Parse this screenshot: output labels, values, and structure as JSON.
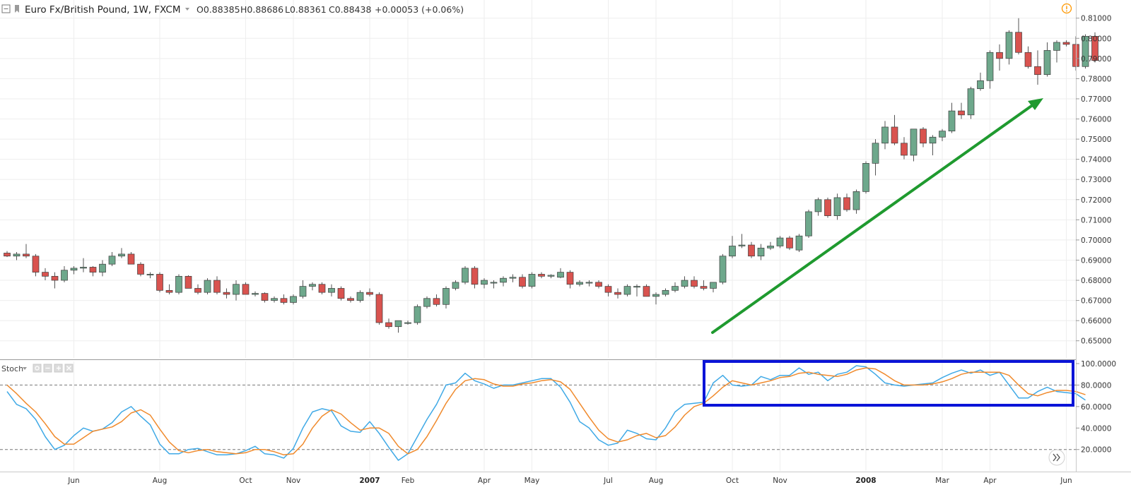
{
  "header": {
    "symbol": "Euro Fx/British Pound, 1W, FXCM",
    "open": "O0.88385",
    "high": "H0.88686",
    "low": "L0.88361",
    "close": "C0.88438",
    "change": "+0.00053 (+0.06%)",
    "colors": {
      "up": "#26a69a",
      "text": "#333333",
      "warning": "#ff9800"
    }
  },
  "indicator": {
    "name": "Stoch"
  },
  "colors": {
    "bull": "#6ea88c",
    "bear": "#d9534f",
    "k_line": "#3fa9e6",
    "d_line": "#f08a2c",
    "arrow": "#1f9a2f",
    "highlight_box": "#0a14d8",
    "grid": "#eeeeee"
  },
  "chart_data": [
    {
      "type": "candlestick",
      "ylim": [
        0.645,
        0.812
      ],
      "yticks": [
        "0.65000",
        "0.66000",
        "0.67000",
        "0.68000",
        "0.69000",
        "0.70000",
        "0.71000",
        "0.72000",
        "0.73000",
        "0.74000",
        "0.75000",
        "0.76000",
        "0.77000",
        "0.78000",
        "0.79000",
        "0.80000",
        "0.81000"
      ],
      "x_labels": [
        {
          "label": "Jun",
          "index": 7
        },
        {
          "label": "Aug",
          "index": 16
        },
        {
          "label": "Oct",
          "index": 25
        },
        {
          "label": "Nov",
          "index": 30
        },
        {
          "label": "2007",
          "index": 38,
          "bold": true
        },
        {
          "label": "Feb",
          "index": 42
        },
        {
          "label": "Apr",
          "index": 50
        },
        {
          "label": "May",
          "index": 55
        },
        {
          "label": "Jul",
          "index": 63
        },
        {
          "label": "Aug",
          "index": 68
        },
        {
          "label": "Oct",
          "index": 76
        },
        {
          "label": "Nov",
          "index": 81
        },
        {
          "label": "2008",
          "index": 90,
          "bold": true
        },
        {
          "label": "Mar",
          "index": 98
        },
        {
          "label": "Apr",
          "index": 103
        },
        {
          "label": "Jun",
          "index": 111
        }
      ],
      "candles": [
        [
          0.6935,
          0.6945,
          0.6915,
          0.692
        ],
        [
          0.692,
          0.694,
          0.69,
          0.693
        ],
        [
          0.693,
          0.698,
          0.691,
          0.692
        ],
        [
          0.692,
          0.693,
          0.682,
          0.684
        ],
        [
          0.684,
          0.686,
          0.68,
          0.682
        ],
        [
          0.682,
          0.684,
          0.676,
          0.68
        ],
        [
          0.68,
          0.687,
          0.679,
          0.685
        ],
        [
          0.685,
          0.687,
          0.683,
          0.686
        ],
        [
          0.686,
          0.691,
          0.684,
          0.6865
        ],
        [
          0.6865,
          0.687,
          0.682,
          0.684
        ],
        [
          0.684,
          0.69,
          0.682,
          0.688
        ],
        [
          0.688,
          0.694,
          0.687,
          0.692
        ],
        [
          0.692,
          0.696,
          0.691,
          0.693
        ],
        [
          0.693,
          0.694,
          0.688,
          0.688
        ],
        [
          0.688,
          0.689,
          0.682,
          0.683
        ],
        [
          0.683,
          0.684,
          0.681,
          0.683
        ],
        [
          0.683,
          0.684,
          0.674,
          0.675
        ],
        [
          0.675,
          0.678,
          0.673,
          0.674
        ],
        [
          0.674,
          0.683,
          0.673,
          0.682
        ],
        [
          0.682,
          0.6825,
          0.676,
          0.676
        ],
        [
          0.676,
          0.678,
          0.673,
          0.674
        ],
        [
          0.674,
          0.681,
          0.673,
          0.68
        ],
        [
          0.68,
          0.682,
          0.673,
          0.674
        ],
        [
          0.674,
          0.676,
          0.671,
          0.673
        ],
        [
          0.673,
          0.68,
          0.67,
          0.678
        ],
        [
          0.678,
          0.679,
          0.673,
          0.673
        ],
        [
          0.673,
          0.6745,
          0.672,
          0.6735
        ],
        [
          0.6735,
          0.674,
          0.669,
          0.67
        ],
        [
          0.67,
          0.672,
          0.669,
          0.671
        ],
        [
          0.671,
          0.673,
          0.668,
          0.669
        ],
        [
          0.669,
          0.673,
          0.668,
          0.672
        ],
        [
          0.672,
          0.68,
          0.671,
          0.677
        ],
        [
          0.677,
          0.679,
          0.675,
          0.678
        ],
        [
          0.678,
          0.679,
          0.673,
          0.674
        ],
        [
          0.674,
          0.678,
          0.672,
          0.676
        ],
        [
          0.676,
          0.677,
          0.67,
          0.671
        ],
        [
          0.671,
          0.672,
          0.669,
          0.67
        ],
        [
          0.67,
          0.675,
          0.669,
          0.674
        ],
        [
          0.674,
          0.676,
          0.672,
          0.673
        ],
        [
          0.673,
          0.674,
          0.658,
          0.659
        ],
        [
          0.659,
          0.661,
          0.656,
          0.657
        ],
        [
          0.657,
          0.66,
          0.654,
          0.66
        ],
        [
          0.659,
          0.66,
          0.658,
          0.659
        ],
        [
          0.659,
          0.668,
          0.658,
          0.667
        ],
        [
          0.667,
          0.672,
          0.666,
          0.671
        ],
        [
          0.671,
          0.673,
          0.667,
          0.668
        ],
        [
          0.668,
          0.677,
          0.666,
          0.676
        ],
        [
          0.676,
          0.68,
          0.675,
          0.679
        ],
        [
          0.679,
          0.687,
          0.678,
          0.686
        ],
        [
          0.686,
          0.687,
          0.676,
          0.678
        ],
        [
          0.678,
          0.681,
          0.676,
          0.68
        ],
        [
          0.679,
          0.68,
          0.676,
          0.679
        ],
        [
          0.679,
          0.682,
          0.677,
          0.681
        ],
        [
          0.681,
          0.683,
          0.679,
          0.6815
        ],
        [
          0.6815,
          0.683,
          0.676,
          0.677
        ],
        [
          0.677,
          0.684,
          0.676,
          0.683
        ],
        [
          0.683,
          0.684,
          0.681,
          0.682
        ],
        [
          0.682,
          0.683,
          0.681,
          0.6825
        ],
        [
          0.6815,
          0.686,
          0.681,
          0.684
        ],
        [
          0.684,
          0.685,
          0.676,
          0.678
        ],
        [
          0.678,
          0.68,
          0.677,
          0.679
        ],
        [
          0.679,
          0.68,
          0.677,
          0.679
        ],
        [
          0.679,
          0.68,
          0.676,
          0.677
        ],
        [
          0.677,
          0.678,
          0.672,
          0.674
        ],
        [
          0.674,
          0.676,
          0.671,
          0.673
        ],
        [
          0.673,
          0.678,
          0.672,
          0.677
        ],
        [
          0.677,
          0.678,
          0.672,
          0.677
        ],
        [
          0.677,
          0.678,
          0.672,
          0.672
        ],
        [
          0.672,
          0.674,
          0.668,
          0.673
        ],
        [
          0.673,
          0.676,
          0.672,
          0.675
        ],
        [
          0.675,
          0.679,
          0.674,
          0.677
        ],
        [
          0.677,
          0.682,
          0.676,
          0.68
        ],
        [
          0.68,
          0.682,
          0.676,
          0.677
        ],
        [
          0.677,
          0.68,
          0.675,
          0.676
        ],
        [
          0.676,
          0.679,
          0.674,
          0.679
        ],
        [
          0.679,
          0.693,
          0.678,
          0.692
        ],
        [
          0.692,
          0.702,
          0.691,
          0.697
        ],
        [
          0.697,
          0.703,
          0.696,
          0.6975
        ],
        [
          0.6975,
          0.699,
          0.691,
          0.692
        ],
        [
          0.692,
          0.698,
          0.69,
          0.696
        ],
        [
          0.696,
          0.699,
          0.695,
          0.697
        ],
        [
          0.697,
          0.702,
          0.696,
          0.701
        ],
        [
          0.701,
          0.702,
          0.695,
          0.696
        ],
        [
          0.695,
          0.703,
          0.694,
          0.702
        ],
        [
          0.702,
          0.715,
          0.701,
          0.714
        ],
        [
          0.714,
          0.721,
          0.712,
          0.72
        ],
        [
          0.72,
          0.721,
          0.711,
          0.712
        ],
        [
          0.712,
          0.723,
          0.71,
          0.721
        ],
        [
          0.721,
          0.723,
          0.714,
          0.715
        ],
        [
          0.715,
          0.725,
          0.713,
          0.724
        ],
        [
          0.724,
          0.739,
          0.723,
          0.738
        ],
        [
          0.738,
          0.75,
          0.732,
          0.748
        ],
        [
          0.748,
          0.759,
          0.745,
          0.756
        ],
        [
          0.756,
          0.762,
          0.747,
          0.748
        ],
        [
          0.748,
          0.751,
          0.74,
          0.742
        ],
        [
          0.742,
          0.755,
          0.739,
          0.755
        ],
        [
          0.755,
          0.756,
          0.746,
          0.748
        ],
        [
          0.748,
          0.752,
          0.742,
          0.751
        ],
        [
          0.751,
          0.755,
          0.749,
          0.754
        ],
        [
          0.754,
          0.768,
          0.753,
          0.764
        ],
        [
          0.764,
          0.768,
          0.76,
          0.762
        ],
        [
          0.762,
          0.776,
          0.76,
          0.775
        ],
        [
          0.775,
          0.783,
          0.774,
          0.779
        ],
        [
          0.779,
          0.794,
          0.775,
          0.793
        ],
        [
          0.793,
          0.797,
          0.784,
          0.79
        ],
        [
          0.79,
          0.804,
          0.787,
          0.803
        ],
        [
          0.803,
          0.81,
          0.792,
          0.793
        ],
        [
          0.793,
          0.796,
          0.785,
          0.786
        ],
        [
          0.786,
          0.794,
          0.777,
          0.782
        ],
        [
          0.782,
          0.798,
          0.781,
          0.794
        ],
        [
          0.794,
          0.799,
          0.788,
          0.798
        ],
        [
          0.798,
          0.799,
          0.796,
          0.797
        ],
        [
          0.797,
          0.801,
          0.784,
          0.786
        ],
        [
          0.786,
          0.802,
          0.785,
          0.801
        ],
        [
          0.801,
          0.803,
          0.788,
          0.789
        ]
      ]
    },
    {
      "type": "line",
      "title": "Stoch",
      "ylim": [
        8,
        100
      ],
      "yticks": [
        "20.0000",
        "40.0000",
        "60.0000",
        "80.0000",
        "100.0000"
      ],
      "levels": [
        20,
        80
      ],
      "series": [
        {
          "values": [
            74,
            62,
            58,
            48,
            32,
            20,
            24,
            33,
            40,
            37,
            39,
            45,
            55,
            60,
            51,
            43,
            25,
            16,
            16,
            20,
            21,
            18,
            15,
            15,
            16,
            19,
            23,
            16,
            15,
            12,
            21,
            40,
            55,
            58,
            56,
            42,
            37,
            36,
            46,
            35,
            22,
            10,
            16,
            32,
            48,
            62,
            80,
            82,
            91,
            84,
            81,
            77,
            80,
            80,
            82,
            84,
            86,
            86,
            78,
            64,
            46,
            40,
            29,
            24,
            26,
            38,
            35,
            30,
            29,
            40,
            55,
            62,
            63,
            64,
            82,
            89,
            80,
            79,
            80,
            88,
            85,
            89,
            89,
            96,
            90,
            92,
            84,
            90,
            92,
            98,
            97,
            90,
            82,
            80,
            79,
            80,
            81,
            82,
            87,
            91,
            94,
            91,
            94,
            89,
            92,
            80,
            68,
            68,
            74,
            78,
            74,
            73,
            72,
            66
          ]
        },
        {
          "values": [
            80,
            72,
            63,
            55,
            44,
            32,
            25,
            25,
            31,
            37,
            39,
            41,
            46,
            54,
            57,
            52,
            39,
            27,
            19,
            17,
            19,
            20,
            18,
            17,
            16,
            17,
            20,
            20,
            18,
            15,
            16,
            25,
            40,
            51,
            57,
            53,
            45,
            38,
            40,
            40,
            35,
            23,
            16,
            20,
            32,
            47,
            63,
            76,
            84,
            86,
            85,
            81,
            79,
            79,
            81,
            82,
            84,
            85,
            83,
            76,
            63,
            50,
            38,
            30,
            27,
            29,
            33,
            35,
            31,
            33,
            41,
            52,
            60,
            63,
            70,
            78,
            84,
            82,
            80,
            82,
            84,
            87,
            88,
            91,
            92,
            90,
            89,
            88,
            90,
            94,
            96,
            95,
            90,
            84,
            80,
            80,
            80,
            81,
            83,
            86,
            90,
            92,
            92,
            92,
            92,
            89,
            80,
            72,
            70,
            73,
            75,
            75,
            74,
            71
          ]
        }
      ]
    }
  ]
}
